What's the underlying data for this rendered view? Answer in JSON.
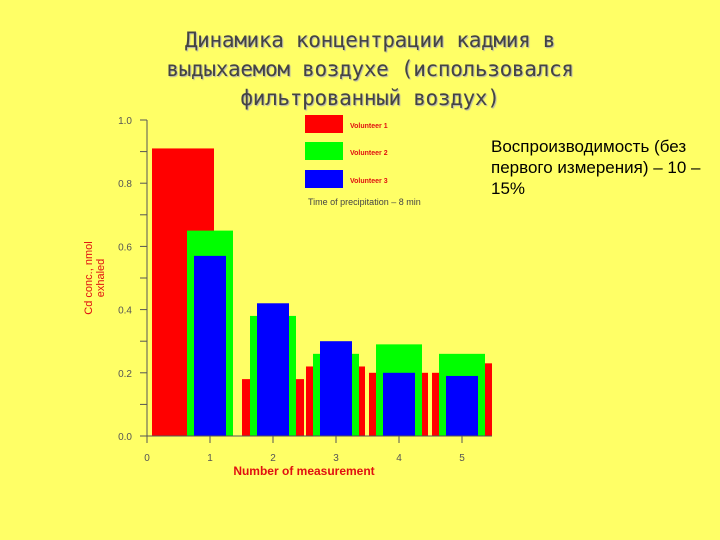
{
  "title": {
    "lines": [
      "Динамика концентрации кадмия в",
      "выдыхаемом воздухе (использовался",
      "фильтрованный воздух)"
    ]
  },
  "side_note": "Воспроизводимость (без первого измерения) – 10 – 15%",
  "chart_data": {
    "type": "bar",
    "categories": [
      "1",
      "2",
      "3",
      "4",
      "5"
    ],
    "x_ticks": [
      "0",
      "1",
      "2",
      "3",
      "4",
      "5"
    ],
    "xlabel": "Number of measurement",
    "ylabel_lines": [
      "Cd conc., nmol",
      "exhaled"
    ],
    "ylim": [
      0,
      1.0
    ],
    "y_ticks": [
      "0.0",
      "0.2",
      "0.4",
      "0.6",
      "0.8",
      "1.0"
    ],
    "series": [
      {
        "name": "Volunteer 1",
        "color": "#ff0000",
        "values": [
          0.91,
          0.18,
          0.22,
          0.2,
          0.23
        ]
      },
      {
        "name": "Volunteer 2",
        "color": "#00ff00",
        "values": [
          0.65,
          0.38,
          0.26,
          0.29,
          0.26
        ]
      },
      {
        "name": "Volunteer 3",
        "color": "#0000ff",
        "values": [
          0.57,
          0.42,
          0.3,
          0.2,
          0.19
        ]
      }
    ],
    "red_gap_bars": [
      0.18,
      0.18,
      0.22,
      0.2,
      0.2,
      0.23
    ],
    "annotation": "Time of precipitation – 8 min",
    "legend_position": "top-right",
    "grid": false,
    "axis_color": "#555555",
    "label_color": "#e01010"
  }
}
